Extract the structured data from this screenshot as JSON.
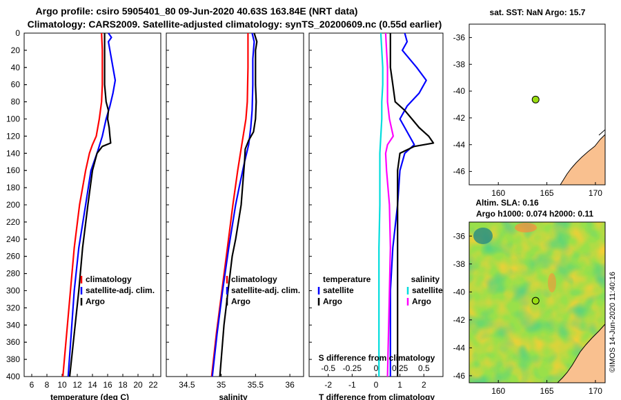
{
  "chart_data": {
    "type": "line",
    "title_line1": "Argo profile: csiro 5905401_80 09-Jun-2020 40.63S 163.84E (NRT data)",
    "title_line2": "Climatology: CARS2009. Satellite-adjusted climatology: synTS_20200609.nc (0.55d earlier)",
    "depth_ticks": [
      "0",
      "20",
      "40",
      "60",
      "80",
      "100",
      "120",
      "140",
      "160",
      "180",
      "200",
      "220",
      "240",
      "260",
      "280",
      "300",
      "320",
      "340",
      "360",
      "380",
      "400"
    ],
    "depth_range": [
      0,
      400
    ],
    "panels": [
      {
        "id": "temperature",
        "xlabel": "temperature (deg C)",
        "xlim": [
          5,
          23
        ],
        "xticks": [
          6,
          8,
          10,
          12,
          14,
          16,
          18,
          20,
          22
        ],
        "xtick_labels": [
          "6",
          "8",
          "10",
          "12",
          "14",
          "16",
          "18",
          "20",
          "22"
        ],
        "legend": [
          "climatology",
          "satellite-adj. clim.",
          "Argo"
        ],
        "series": [
          {
            "name": "climatology",
            "color": "#ff0000",
            "depth": [
              0,
              20,
              60,
              80,
              100,
              120,
              130,
              140,
              160,
              200,
              250,
              300,
              350,
              400
            ],
            "values": [
              15.2,
              15.3,
              15.3,
              15.2,
              14.9,
              14.5,
              14.0,
              13.6,
              13.1,
              12.3,
              11.6,
              11.1,
              10.6,
              10.1
            ]
          },
          {
            "name": "satellite-adj. clim.",
            "color": "#0000ff",
            "depth": [
              0,
              5,
              10,
              20,
              40,
              55,
              70,
              85,
              100,
              120,
              140,
              160,
              200,
              250,
              300,
              350,
              400
            ],
            "values": [
              16.1,
              16.5,
              16.1,
              16.3,
              16.7,
              17.0,
              16.7,
              16.3,
              15.8,
              15.3,
              14.6,
              13.8,
              13.1,
              12.2,
              11.6,
              11.2,
              10.8
            ]
          },
          {
            "name": "Argo",
            "color": "#000000",
            "depth": [
              0,
              20,
              40,
              60,
              80,
              90,
              100,
              110,
              120,
              128,
              132,
              140,
              160,
              200,
              250,
              300,
              350,
              400
            ],
            "values": [
              15.6,
              15.6,
              15.6,
              15.6,
              15.8,
              16.1,
              16.0,
              16.2,
              16.3,
              16.4,
              15.3,
              14.6,
              14.0,
              13.4,
              12.7,
              12.2,
              11.6,
              11.0
            ]
          }
        ]
      },
      {
        "id": "salinity",
        "xlabel": "salinity",
        "xlim": [
          34.2,
          36.2
        ],
        "xticks": [
          34.5,
          35,
          35.5,
          36
        ],
        "xtick_labels": [
          "34.5",
          "35",
          "35.5",
          "36"
        ],
        "legend": [
          "climatology",
          "satellite-adj. clim.",
          "Argo"
        ],
        "series": [
          {
            "name": "climatology",
            "color": "#ff0000",
            "depth": [
              0,
              40,
              80,
              100,
              130,
              160,
              200,
              250,
              300,
              350,
              400
            ],
            "values": [
              35.39,
              35.39,
              35.38,
              35.36,
              35.3,
              35.24,
              35.17,
              35.09,
              35.01,
              34.93,
              34.86
            ]
          },
          {
            "name": "satellite-adj. clim.",
            "color": "#0000ff",
            "depth": [
              0,
              10,
              30,
              60,
              90,
              110,
              130,
              150,
              180,
              200,
              250,
              300,
              350,
              400
            ],
            "values": [
              35.45,
              35.48,
              35.46,
              35.46,
              35.45,
              35.43,
              35.4,
              35.34,
              35.26,
              35.21,
              35.11,
              35.02,
              34.94,
              34.87
            ]
          },
          {
            "name": "Argo",
            "color": "#000000",
            "depth": [
              0,
              10,
              20,
              40,
              60,
              80,
              100,
              115,
              125,
              135,
              150,
              170,
              200,
              220,
              240,
              260,
              280,
              300,
              320,
              340,
              360,
              380,
              400
            ],
            "values": [
              35.48,
              35.52,
              35.5,
              35.5,
              35.5,
              35.51,
              35.5,
              35.47,
              35.4,
              35.35,
              35.34,
              35.32,
              35.29,
              35.25,
              35.21,
              35.16,
              35.13,
              35.1,
              35.07,
              35.04,
              35.02,
              35.0,
              34.98
            ]
          }
        ]
      },
      {
        "id": "difference",
        "xlabel": "T difference from climatology",
        "top_xlabel": "S difference from climatology",
        "xlim": [
          -2.8,
          2.8
        ],
        "xticks": [
          -2,
          -1,
          0,
          1,
          2
        ],
        "xtick_labels": [
          "-2",
          "-1",
          "0",
          "1",
          "2"
        ],
        "top_xticks": [
          -0.5,
          -0.25,
          0,
          0.25,
          0.5
        ],
        "top_xtick_labels": [
          "-0.5",
          "-0.25",
          "0",
          "0.25",
          "0.5"
        ],
        "legend_left_title": "temperature",
        "legend_right_title": "salinity",
        "legend_left": [
          "satellite",
          "Argo"
        ],
        "legend_right": [
          "satellite",
          "Argo"
        ],
        "series": [
          {
            "name": "temperature satellite",
            "color": "#0000ff",
            "depth": [
              0,
              10,
              20,
              40,
              55,
              70,
              85,
              100,
              110,
              120,
              130,
              140,
              160,
              200,
              250,
              300,
              350,
              400
            ],
            "values": [
              1.2,
              1.3,
              1.1,
              1.7,
              2.1,
              1.8,
              1.3,
              1.0,
              1.2,
              1.4,
              1.6,
              1.2,
              1.0,
              0.9,
              0.7,
              0.6,
              0.6,
              0.6
            ]
          },
          {
            "name": "temperature Argo",
            "color": "#000000",
            "depth": [
              0,
              20,
              40,
              60,
              80,
              90,
              100,
              110,
              120,
              128,
              132,
              140,
              160,
              200,
              250,
              300,
              350,
              400
            ],
            "values": [
              0.6,
              0.6,
              0.6,
              0.7,
              0.8,
              1.2,
              1.5,
              1.8,
              2.2,
              2.4,
              1.6,
              1.0,
              0.9,
              0.9,
              0.9,
              0.9,
              0.9,
              0.9
            ]
          },
          {
            "name": "salinity satellite",
            "color": "#00dddd",
            "depth": [
              0,
              20,
              40,
              60,
              80,
              100,
              120,
              140,
              160,
              200,
              250,
              300,
              350,
              400
            ],
            "values": [
              0.05,
              0.06,
              0.07,
              0.07,
              0.06,
              0.06,
              0.05,
              0.04,
              0.04,
              0.04,
              0.03,
              0.03,
              0.03,
              0.03
            ]
          },
          {
            "name": "salinity Argo",
            "color": "#ff00ff",
            "depth": [
              0,
              20,
              40,
              60,
              80,
              100,
              120,
              130,
              140,
              160,
              200,
              250,
              300,
              350,
              400
            ],
            "values": [
              0.1,
              0.11,
              0.12,
              0.12,
              0.12,
              0.14,
              0.18,
              0.12,
              0.1,
              0.11,
              0.14,
              0.15,
              0.14,
              0.13,
              0.12
            ]
          }
        ]
      }
    ],
    "sst_map": {
      "title": "sat. SST: NaN Argo: 15.7",
      "lat_ticks": [
        "-36",
        "-38",
        "-40",
        "-42",
        "-44",
        "-46"
      ],
      "lon_ticks": [
        "160",
        "165",
        "170"
      ],
      "lat_range": [
        -47,
        -35
      ],
      "lon_range": [
        157,
        171
      ],
      "argo_lat": -40.63,
      "argo_lon": 163.84
    },
    "sla_map": {
      "title_line1": "Altim. SLA: 0.16",
      "title_line2": "Argo h1000: 0.074 h2000: 0.11",
      "lat_ticks": [
        "-36",
        "-38",
        "-40",
        "-42",
        "-44",
        "-46"
      ],
      "lon_ticks": [
        "160",
        "165",
        "170"
      ],
      "lat_range": [
        -46.5,
        -35
      ],
      "lon_range": [
        157,
        171
      ],
      "argo_lat": -40.63,
      "argo_lon": 163.84,
      "credit": "©IMOS 14-Jun-2020 11:40:16"
    }
  }
}
